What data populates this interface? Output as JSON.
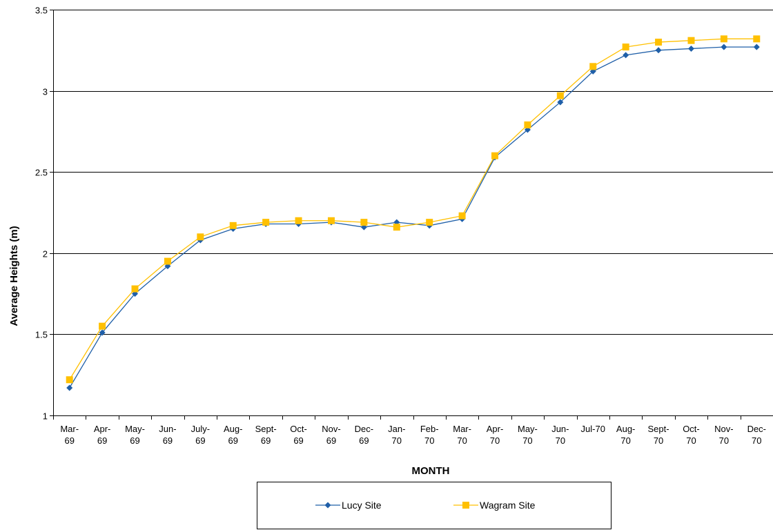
{
  "chart_data": {
    "type": "line",
    "title": "",
    "xlabel": "MONTH",
    "ylabel": "Average Heights (m)",
    "ylim": [
      1,
      3.5
    ],
    "yticks": [
      "1",
      "1.5",
      "2",
      "2.5",
      "3",
      "3.5"
    ],
    "grid": "horizontal",
    "legend_position": "bottom",
    "categories": [
      [
        "Mar-",
        "69"
      ],
      [
        "Apr-",
        "69"
      ],
      [
        "May-",
        "69"
      ],
      [
        "Jun-",
        "69"
      ],
      [
        "July-",
        "69"
      ],
      [
        "Aug-",
        "69"
      ],
      [
        "Sept-",
        "69"
      ],
      [
        "Oct-",
        "69"
      ],
      [
        "Nov-",
        "69"
      ],
      [
        "Dec-",
        "69"
      ],
      [
        "Jan-",
        "70"
      ],
      [
        "Feb-",
        "70"
      ],
      [
        "Mar-",
        "70"
      ],
      [
        "Apr-",
        "70"
      ],
      [
        "May-",
        "70"
      ],
      [
        "Jun-",
        "70"
      ],
      [
        "Jul-70"
      ],
      [
        "Aug-",
        "70"
      ],
      [
        "Sept-",
        "70"
      ],
      [
        "Oct-",
        "70"
      ],
      [
        "Nov-",
        "70"
      ],
      [
        "Dec-",
        "70"
      ]
    ],
    "series": [
      {
        "name": "Lucy Site",
        "color": "#1f5fa8",
        "marker": "diamond",
        "values": [
          1.17,
          1.51,
          1.75,
          1.92,
          2.08,
          2.15,
          2.18,
          2.18,
          2.19,
          2.16,
          2.19,
          2.17,
          2.21,
          2.59,
          2.76,
          2.93,
          3.12,
          3.22,
          3.25,
          3.26,
          3.27,
          3.27
        ]
      },
      {
        "name": "Wagram Site",
        "color": "#ffc000",
        "marker": "square",
        "values": [
          1.22,
          1.55,
          1.78,
          1.95,
          2.1,
          2.17,
          2.19,
          2.2,
          2.2,
          2.19,
          2.16,
          2.19,
          2.23,
          2.6,
          2.79,
          2.97,
          3.15,
          3.27,
          3.3,
          3.31,
          3.32,
          3.32
        ]
      }
    ]
  }
}
